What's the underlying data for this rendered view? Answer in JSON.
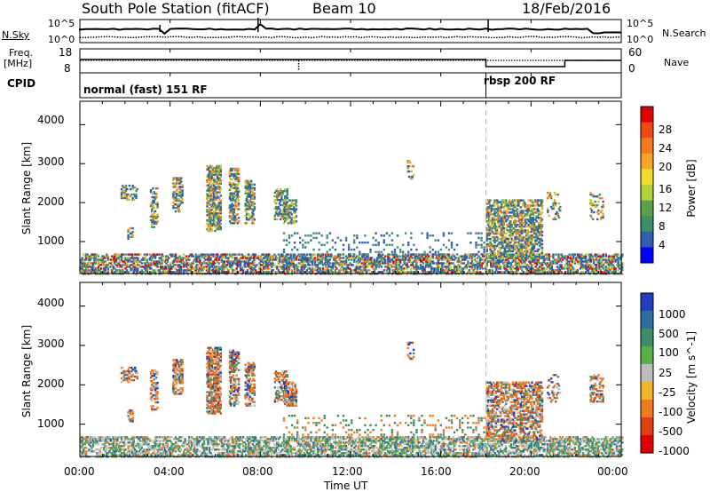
{
  "header": {
    "station": "South Pole Station (fitACF)",
    "beam": "Beam 10",
    "date": "18/Feb/2016"
  },
  "strip_left": {
    "nsky": "N.Sky",
    "nsky_ticks": [
      "10^5",
      "10^0"
    ],
    "freq": "Freq.",
    "freq_unit": "[MHz]",
    "freq_ticks": [
      "18",
      "8"
    ],
    "cpid": "CPID"
  },
  "strip_right": {
    "nsearch": "N.Search",
    "nsearch_ticks": [
      "10^5",
      "10^0"
    ],
    "nave": "Nave",
    "nave_ticks": [
      "60",
      "0"
    ]
  },
  "cpid_modes": [
    {
      "label": "normal (fast) 151 RF",
      "start_hour": 0
    },
    {
      "label": "rbsp 200 RF",
      "start_hour": 18
    }
  ],
  "chart_data": [
    {
      "type": "heatmap",
      "title": "",
      "ylabel": "Slant Range [km]",
      "yticks": [
        "1000",
        "2000",
        "3000",
        "4000"
      ],
      "ylim": [
        180,
        4600
      ],
      "xlim": [
        0,
        24
      ],
      "colorbar": {
        "label": "Power [dB]",
        "ticks": [
          "4",
          "8",
          "12",
          "16",
          "20",
          "24",
          "28"
        ],
        "colors": [
          "#0000ff",
          "#2f5fb0",
          "#3e8e6a",
          "#5aa24a",
          "#b0d236",
          "#f0dc28",
          "#f7a52a",
          "#f47a1f",
          "#ee4a14",
          "#e00000"
        ]
      }
    },
    {
      "type": "heatmap",
      "title": "",
      "ylabel": "Slant Range [km]",
      "yticks": [
        "1000",
        "2000",
        "3000",
        "4000"
      ],
      "xlabel": "Time UT",
      "xticks": [
        "00:00",
        "04:00",
        "08:00",
        "12:00",
        "16:00",
        "20:00",
        "00:00"
      ],
      "ylim": [
        180,
        4600
      ],
      "xlim": [
        0,
        24
      ],
      "colorbar": {
        "label": "Velocity [m s^-1]",
        "ticks": [
          "1000",
          "500",
          "100",
          "25",
          "-25",
          "-100",
          "-500",
          "-1000"
        ],
        "colors": [
          "#1f3fbf",
          "#2f6ea0",
          "#3e8e6a",
          "#58b048",
          "#bdbdbd",
          "#f0b428",
          "#f07a1f",
          "#e04010",
          "#e00000"
        ]
      }
    }
  ]
}
